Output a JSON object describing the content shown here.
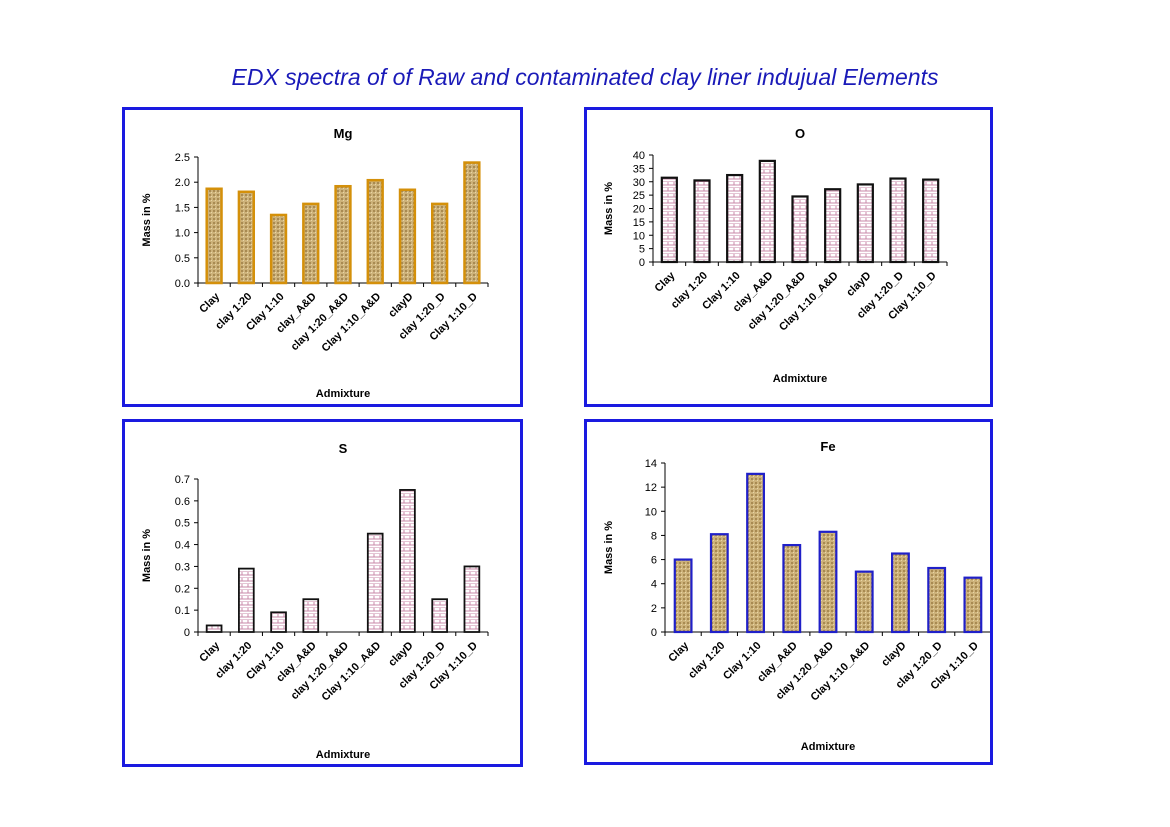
{
  "page": {
    "title": "EDX spectra of of  Raw and contaminated clay liner  indujual Elements"
  },
  "colors": {
    "frame": "#1a1ae0",
    "title": "#1a1ab8",
    "fill_gold": "#cdb27a",
    "edge_gold": "#d4900a",
    "fill_pink": "#f3dde8",
    "edge_dark": "#111111",
    "edge_blue": "#2020c8"
  },
  "chart_data": [
    {
      "type": "bar",
      "title": "Mg",
      "xlabel": "Admixture",
      "ylabel": "Mass in %",
      "categories": [
        "Clay",
        "clay 1:20",
        "Clay 1:10",
        "clay_A&D",
        "clay 1:20_A&D",
        "Clay 1:10_A&D",
        "clayD",
        "clay 1:20_D",
        "Clay 1:10_D"
      ],
      "values": [
        1.87,
        1.81,
        1.35,
        1.57,
        1.92,
        2.04,
        1.85,
        1.57,
        2.39
      ],
      "ylim": [
        0,
        2.5
      ],
      "yticks": [
        "0.0",
        "0.5",
        "1.0",
        "1.5",
        "2.0",
        "2.5"
      ],
      "grid": false,
      "legend": "none"
    },
    {
      "type": "bar",
      "title": "O",
      "xlabel": "Admixture",
      "ylabel": "Mass in %",
      "categories": [
        "Clay",
        "clay 1:20",
        "Clay 1:10",
        "clay_A&D",
        "clay 1:20_A&D",
        "Clay 1:10_A&D",
        "clayD",
        "clay 1:20_D",
        "Clay 1:10_D"
      ],
      "values": [
        31.5,
        30.5,
        32.5,
        37.8,
        24.5,
        27.2,
        29.0,
        31.2,
        30.8
      ],
      "ylim": [
        0,
        40
      ],
      "yticks": [
        "0",
        "5",
        "10",
        "15",
        "20",
        "25",
        "30",
        "35",
        "40"
      ],
      "grid": false,
      "legend": "none"
    },
    {
      "type": "bar",
      "title": "S",
      "xlabel": "Admixture",
      "ylabel": "Mass in %",
      "categories": [
        "Clay",
        "clay 1:20",
        "Clay 1:10",
        "clay_A&D",
        "clay 1:20_A&D",
        "Clay 1:10_A&D",
        "clayD",
        "clay 1:20_D",
        "Clay 1:10_D"
      ],
      "values": [
        0.03,
        0.29,
        0.09,
        0.15,
        0,
        0.45,
        0.65,
        0.15,
        0.3
      ],
      "ylim": [
        0,
        0.7
      ],
      "yticks": [
        "0",
        "0.1",
        "0.2",
        "0.3",
        "0.4",
        "0.5",
        "0.6",
        "0.7"
      ],
      "grid": false,
      "legend": "none"
    },
    {
      "type": "bar",
      "title": "Fe",
      "xlabel": "Admixture",
      "ylabel": "Mass in %",
      "categories": [
        "Clay",
        "clay 1:20",
        "Clay 1:10",
        "clay_A&D",
        "clay 1:20_A&D",
        "Clay 1:10_A&D",
        "clayD",
        "clay 1:20_D",
        "Clay 1:10_D"
      ],
      "values": [
        6.0,
        8.1,
        13.1,
        7.2,
        8.3,
        5.0,
        6.5,
        5.3,
        4.5
      ],
      "ylim": [
        0,
        14
      ],
      "yticks": [
        "0",
        "2",
        "4",
        "6",
        "8",
        "10",
        "12",
        "14"
      ],
      "grid": false,
      "legend": "none"
    }
  ]
}
